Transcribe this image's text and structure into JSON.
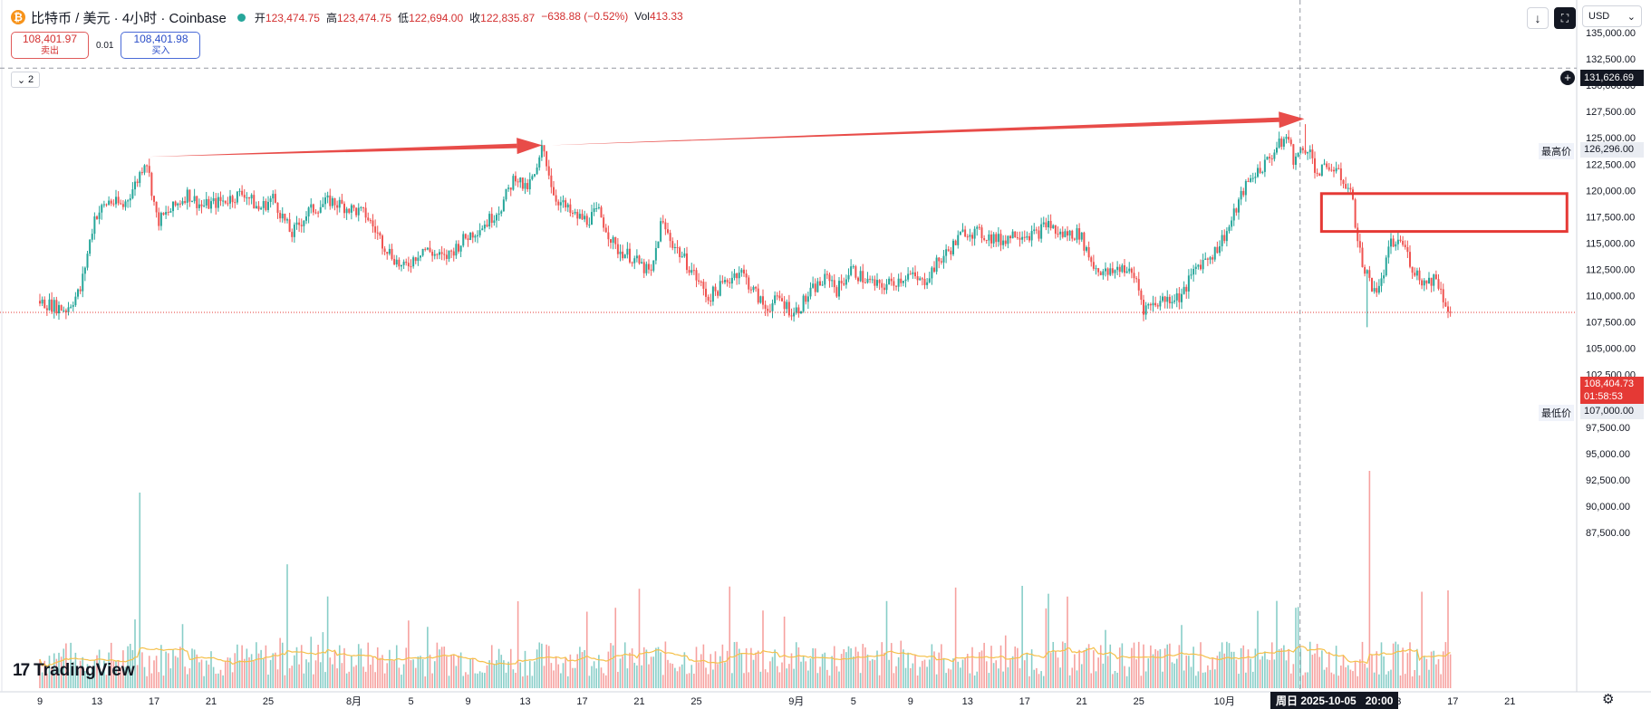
{
  "header": {
    "symbol": "比特币 / 美元 · 4小时 · Coinbase",
    "open_label": "开",
    "open": "123,474.75",
    "high_label": "高",
    "high": "123,474.75",
    "low_label": "低",
    "low": "122,694.00",
    "close_label": "收",
    "close": "122,835.87",
    "change": "−638.88 (−0.52%)",
    "vol_label": "Vol",
    "vol": "413.33"
  },
  "trade": {
    "sell_price": "108,401.97",
    "sell_label": "卖出",
    "spread": "0.01",
    "buy_price": "108,401.98",
    "buy_label": "买入"
  },
  "indicator_count": "2",
  "currency": "USD",
  "logo": "TradingView",
  "crosshair": {
    "date": "周日 2025-10-05",
    "time": "20:00",
    "price": "131,626.69"
  },
  "price_tag": {
    "price": "108,404.73",
    "countdown": "01:58:53"
  },
  "high_marker": {
    "label": "最高价",
    "value": "126,296.00"
  },
  "low_marker": {
    "label": "最低价",
    "value": "107,000.00"
  },
  "chart_data": {
    "type": "candlestick",
    "timeframe": "4h",
    "y_axis": {
      "min": 85000,
      "max": 136000,
      "ticks": [
        "135,000.00",
        "132,500.00",
        "130,000.00",
        "127,500.00",
        "125,000.00",
        "122,500.00",
        "120,000.00",
        "117,500.00",
        "115,000.00",
        "112,500.00",
        "110,000.00",
        "107,500.00",
        "105,000.00",
        "102,500.00",
        "100,000.00",
        "97,500.00",
        "95,000.00",
        "92,500.00",
        "90,000.00",
        "87,500.00"
      ],
      "tick_values": [
        135000,
        132500,
        130000,
        127500,
        125000,
        122500,
        120000,
        117500,
        115000,
        112500,
        110000,
        107500,
        105000,
        102500,
        100000,
        97500,
        95000,
        92500,
        90000,
        87500
      ]
    },
    "x_axis": {
      "ticks": [
        {
          "label": "9",
          "day": 0
        },
        {
          "label": "13",
          "day": 4
        },
        {
          "label": "17",
          "day": 8
        },
        {
          "label": "21",
          "day": 12
        },
        {
          "label": "25",
          "day": 16
        },
        {
          "label": "8月",
          "day": 22
        },
        {
          "label": "5",
          "day": 26
        },
        {
          "label": "9",
          "day": 30
        },
        {
          "label": "13",
          "day": 34
        },
        {
          "label": "17",
          "day": 38
        },
        {
          "label": "21",
          "day": 42
        },
        {
          "label": "25",
          "day": 46
        },
        {
          "label": "9月",
          "day": 53
        },
        {
          "label": "5",
          "day": 57
        },
        {
          "label": "9",
          "day": 61
        },
        {
          "label": "13",
          "day": 65
        },
        {
          "label": "17",
          "day": 69
        },
        {
          "label": "21",
          "day": 73
        },
        {
          "label": "25",
          "day": 77
        },
        {
          "label": "10月",
          "day": 83
        },
        {
          "label": "9",
          "day": 91
        },
        {
          "label": "13",
          "day": 95
        },
        {
          "label": "17",
          "day": 99
        },
        {
          "label": "21",
          "day": 103
        }
      ]
    },
    "price_path": [
      {
        "day": 0,
        "price": 109500
      },
      {
        "day": 2,
        "price": 108700
      },
      {
        "day": 3,
        "price": 110500
      },
      {
        "day": 4,
        "price": 117500
      },
      {
        "day": 5,
        "price": 119000
      },
      {
        "day": 6,
        "price": 118500
      },
      {
        "day": 7,
        "price": 121000
      },
      {
        "day": 7.6,
        "price": 123200
      },
      {
        "day": 8.4,
        "price": 117000
      },
      {
        "day": 9.5,
        "price": 118300
      },
      {
        "day": 10.5,
        "price": 119700
      },
      {
        "day": 11.5,
        "price": 118500
      },
      {
        "day": 13,
        "price": 119000
      },
      {
        "day": 14.5,
        "price": 119800
      },
      {
        "day": 15.5,
        "price": 118200
      },
      {
        "day": 16.5,
        "price": 119300
      },
      {
        "day": 17.8,
        "price": 115800
      },
      {
        "day": 19,
        "price": 118000
      },
      {
        "day": 20.5,
        "price": 119000
      },
      {
        "day": 21.5,
        "price": 118500
      },
      {
        "day": 23,
        "price": 117700
      },
      {
        "day": 24.2,
        "price": 115000
      },
      {
        "day": 25.6,
        "price": 112500
      },
      {
        "day": 27,
        "price": 114500
      },
      {
        "day": 28.5,
        "price": 113500
      },
      {
        "day": 30,
        "price": 115500
      },
      {
        "day": 31.5,
        "price": 117000
      },
      {
        "day": 32.5,
        "price": 118500
      },
      {
        "day": 33.5,
        "price": 121500
      },
      {
        "day": 34.2,
        "price": 120000
      },
      {
        "day": 35,
        "price": 121800
      },
      {
        "day": 35.4,
        "price": 124300
      },
      {
        "day": 36.2,
        "price": 119500
      },
      {
        "day": 37.5,
        "price": 117600
      },
      {
        "day": 38.5,
        "price": 117200
      },
      {
        "day": 39.3,
        "price": 118000
      },
      {
        "day": 40.5,
        "price": 114500
      },
      {
        "day": 41.5,
        "price": 113800
      },
      {
        "day": 43,
        "price": 112000
      },
      {
        "day": 43.7,
        "price": 117000
      },
      {
        "day": 44.5,
        "price": 115000
      },
      {
        "day": 45.8,
        "price": 112500
      },
      {
        "day": 47,
        "price": 109800
      },
      {
        "day": 48,
        "price": 111000
      },
      {
        "day": 49.2,
        "price": 112500
      },
      {
        "day": 50,
        "price": 110800
      },
      {
        "day": 51,
        "price": 108800
      },
      {
        "day": 52,
        "price": 109700
      },
      {
        "day": 53,
        "price": 108300
      },
      {
        "day": 54.5,
        "price": 110800
      },
      {
        "day": 55.5,
        "price": 111800
      },
      {
        "day": 56,
        "price": 110500
      },
      {
        "day": 57,
        "price": 112500
      },
      {
        "day": 58,
        "price": 111500
      },
      {
        "day": 59,
        "price": 110800
      },
      {
        "day": 60,
        "price": 111300
      },
      {
        "day": 61,
        "price": 112000
      },
      {
        "day": 62,
        "price": 111200
      },
      {
        "day": 63,
        "price": 113000
      },
      {
        "day": 64,
        "price": 114500
      },
      {
        "day": 65,
        "price": 116200
      },
      {
        "day": 66.5,
        "price": 115700
      },
      {
        "day": 67.5,
        "price": 115200
      },
      {
        "day": 68.5,
        "price": 116000
      },
      {
        "day": 70,
        "price": 115800
      },
      {
        "day": 70.8,
        "price": 117000
      },
      {
        "day": 71.5,
        "price": 115800
      },
      {
        "day": 73,
        "price": 115900
      },
      {
        "day": 74,
        "price": 112800
      },
      {
        "day": 75,
        "price": 112000
      },
      {
        "day": 76,
        "price": 112800
      },
      {
        "day": 77,
        "price": 111500
      },
      {
        "day": 77.5,
        "price": 108800
      },
      {
        "day": 78.8,
        "price": 109600
      },
      {
        "day": 80.2,
        "price": 110000
      },
      {
        "day": 81.2,
        "price": 112800
      },
      {
        "day": 82.5,
        "price": 114200
      },
      {
        "day": 83.5,
        "price": 116500
      },
      {
        "day": 84.5,
        "price": 120000
      },
      {
        "day": 85.2,
        "price": 121500
      },
      {
        "day": 86,
        "price": 122500
      },
      {
        "day": 86.8,
        "price": 124000
      },
      {
        "day": 87.6,
        "price": 125200
      },
      {
        "day": 88,
        "price": 123000
      },
      {
        "day": 89,
        "price": 124200
      },
      {
        "day": 89.7,
        "price": 121500
      },
      {
        "day": 90.5,
        "price": 122400
      },
      {
        "day": 91.5,
        "price": 121000
      },
      {
        "day": 92,
        "price": 120000
      },
      {
        "day": 92.8,
        "price": 113000
      },
      {
        "day": 93.5,
        "price": 111000
      },
      {
        "day": 94,
        "price": 110500
      },
      {
        "day": 94.8,
        "price": 114800
      },
      {
        "day": 95.6,
        "price": 115200
      },
      {
        "day": 96.4,
        "price": 112500
      },
      {
        "day": 97.2,
        "price": 111200
      },
      {
        "day": 98,
        "price": 111800
      },
      {
        "day": 98.5,
        "price": 109800
      },
      {
        "day": 99,
        "price": 108400
      }
    ],
    "extreme_wicks": [
      {
        "day": 35.4,
        "high": 124300
      },
      {
        "day": 88.6,
        "high": 126296
      },
      {
        "day": 93,
        "low": 107000
      }
    ],
    "volume_spikes": [
      {
        "day": 7,
        "rel": 0.9
      },
      {
        "day": 17.3,
        "rel": 0.57
      },
      {
        "day": 33.5,
        "rel": 0.4
      },
      {
        "day": 88,
        "rel": 0.37
      },
      {
        "day": 93.2,
        "rel": 1.0
      },
      {
        "day": 98.6,
        "rel": 0.45
      }
    ],
    "volume_scale_rel_baseline": 0.18,
    "annotations": {
      "arrows": [
        {
          "from": {
            "day": 7.6,
            "price": 123200
          },
          "to": {
            "day": 35.2,
            "price": 124300
          }
        },
        {
          "from": {
            "day": 35.8,
            "price": 124300
          },
          "to": {
            "day": 88.6,
            "price": 126800
          }
        }
      ],
      "rectangle": {
        "day_from": 89.8,
        "day_to": 107.0,
        "price_from": 116100,
        "price_to": 119700
      }
    },
    "current_price": 108404.73,
    "crosshair_day": 88.3,
    "crosshair_price": 131626.69,
    "colors": {
      "up": "#26a69a",
      "down": "#ef5350",
      "volume_ma": "#f5c04a",
      "annotation": "#e53935",
      "last_price": "#e53935"
    }
  }
}
